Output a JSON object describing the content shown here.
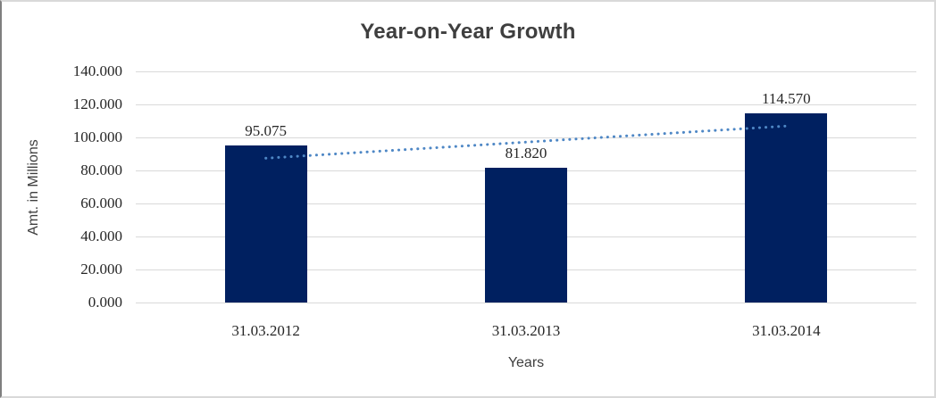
{
  "chart_data": {
    "type": "bar",
    "title": "Year-on-Year Growth",
    "categories": [
      "31.03.2012",
      "31.03.2013",
      "31.03.2014"
    ],
    "values": [
      95075,
      81820,
      114570
    ],
    "value_labels": [
      "95.075",
      "81.820",
      "114.570"
    ],
    "xlabel": "Years",
    "ylabel": "Amt. in Millions",
    "ylim": [
      0,
      140000
    ],
    "ytick_step": 20000,
    "ytick_labels": [
      "0.000",
      "20.000",
      "40.000",
      "60.000",
      "80.000",
      "100.000",
      "120.000",
      "140.000"
    ],
    "grid": true,
    "legend": "none",
    "bar_color": "#002060",
    "trendline": {
      "kind": "linear",
      "style": "dotted",
      "color": "#4e87c5"
    },
    "colors": {
      "gridline": "#d9d9d9",
      "tick_text": "#262626",
      "title_text": "#3f3f3f",
      "background": "#ffffff"
    }
  }
}
